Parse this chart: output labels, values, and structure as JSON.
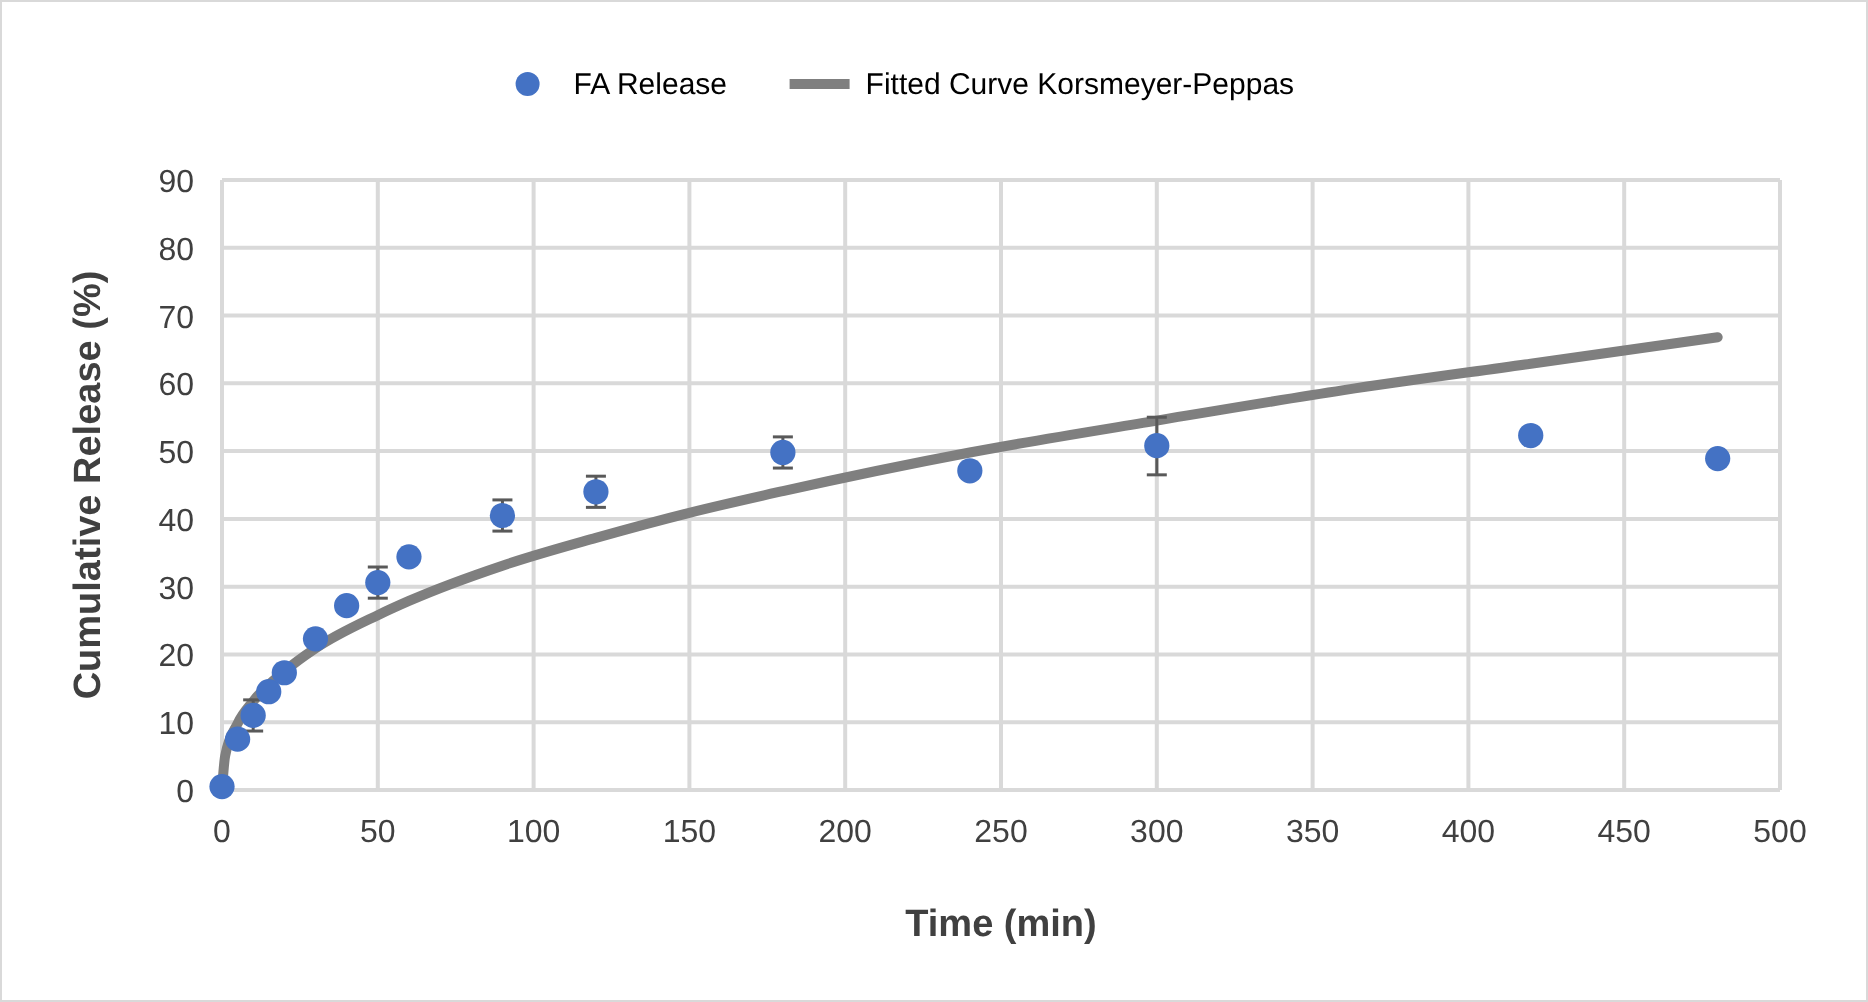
{
  "chart_data": {
    "type": "scatter",
    "xlabel": "Time (min)",
    "ylabel": "Cumulative Release (%)",
    "xlim": [
      0,
      500
    ],
    "xticks": [
      0,
      50,
      100,
      150,
      200,
      250,
      300,
      350,
      400,
      450,
      500
    ],
    "ylim": [
      0,
      90
    ],
    "yticks": [
      0,
      10,
      20,
      30,
      40,
      50,
      60,
      70,
      80,
      90
    ],
    "grid": true,
    "legend": "top",
    "series": [
      {
        "name": "FA Release",
        "color": "#4472c4",
        "marker": "circle",
        "x": [
          0,
          5,
          10,
          15,
          20,
          30,
          40,
          50,
          60,
          90,
          120,
          180,
          240,
          300,
          420,
          480
        ],
        "values": [
          0.5,
          7.5,
          11,
          14.5,
          17.3,
          22.3,
          27.2,
          30.6,
          34.4,
          40.5,
          44,
          49.8,
          47.1,
          50.8,
          52.3,
          48.9
        ],
        "errors": [
          null,
          null,
          2.3,
          null,
          null,
          null,
          null,
          2.3,
          null,
          2.3,
          2.3,
          2.3,
          null,
          [
            46.5,
            55
          ],
          null,
          null
        ]
      },
      {
        "name": "Fitted Curve Korsmeyer-Peppas",
        "type": "line",
        "color": "#7f7f7f",
        "marker": "none",
        "line_style": "solid",
        "x": [
          0,
          1,
          5,
          10,
          20,
          30,
          50,
          60,
          90,
          120,
          150,
          180,
          240,
          300,
          360,
          420,
          480
        ],
        "values": [
          0,
          5,
          9.8,
          13.1,
          17.5,
          20.9,
          25.8,
          27.9,
          33.1,
          37.2,
          40.9,
          44.1,
          49.8,
          54.5,
          59,
          62.9,
          66.8
        ]
      }
    ]
  }
}
